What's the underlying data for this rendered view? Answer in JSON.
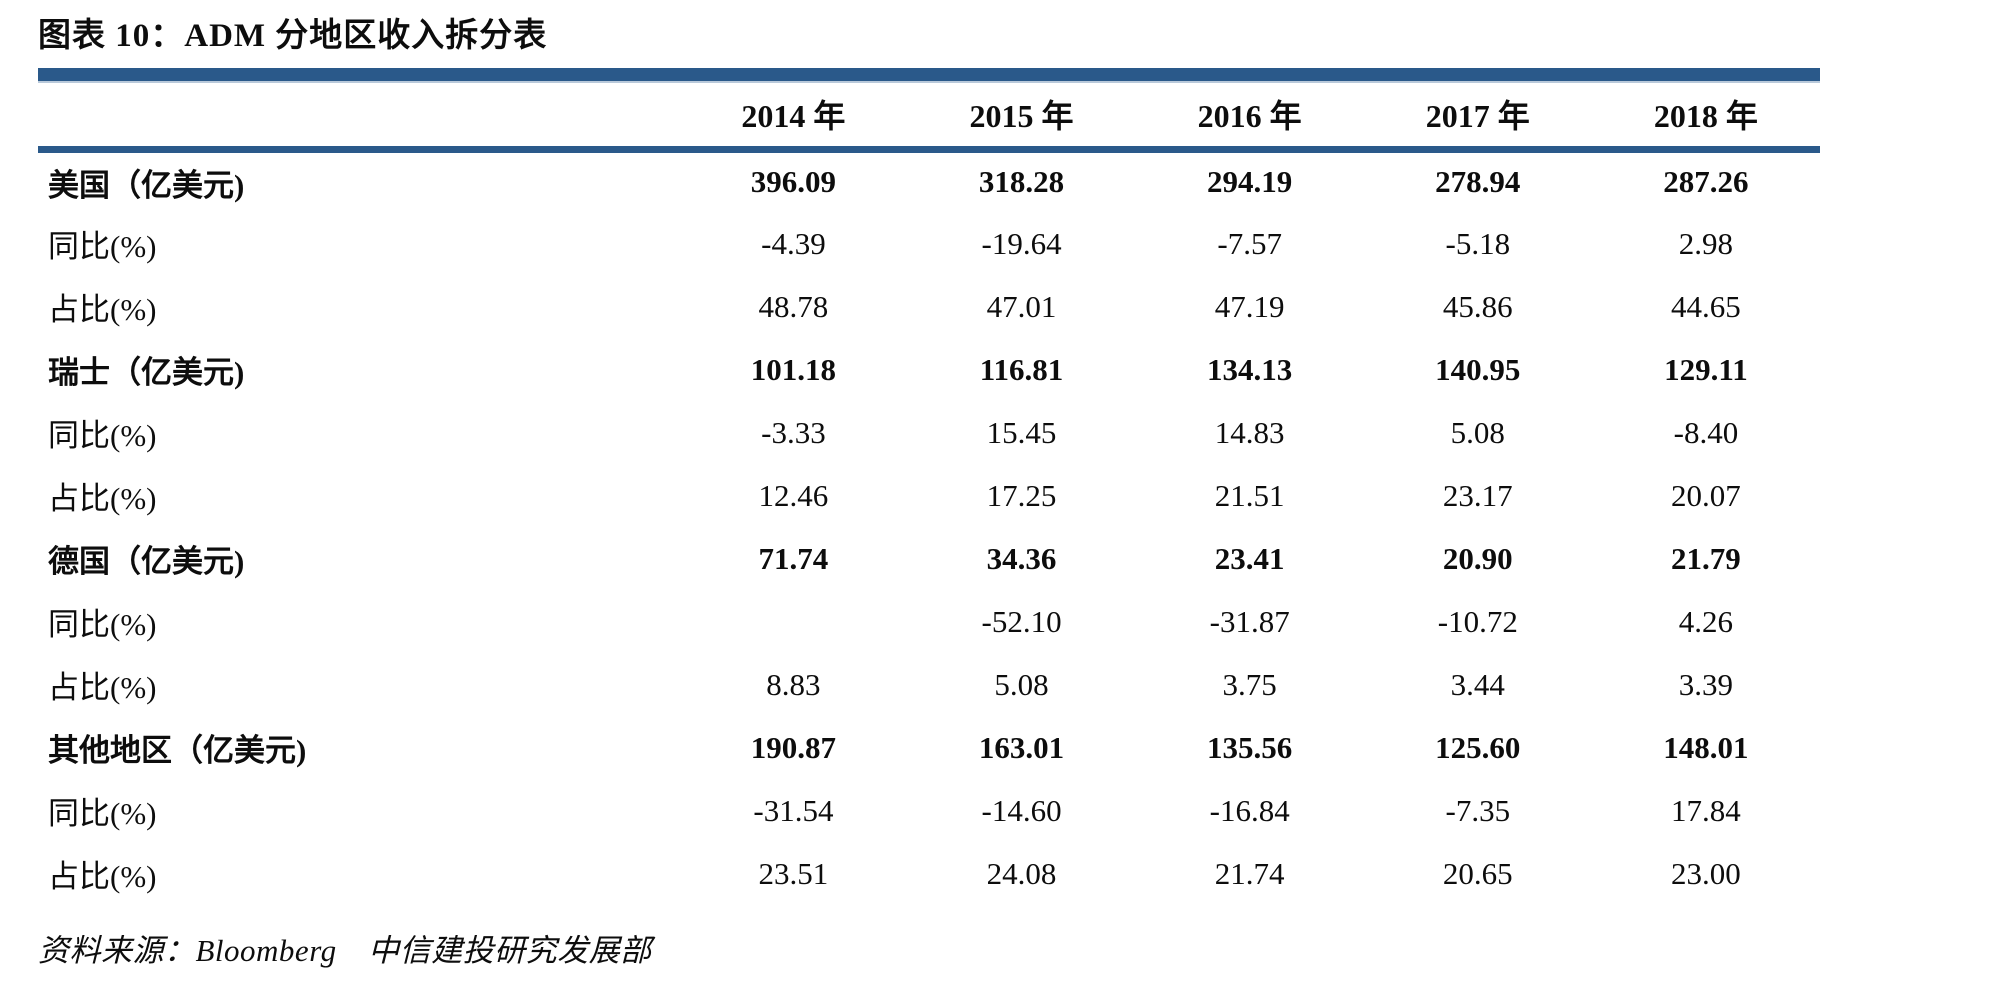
{
  "figure": {
    "title": "图表 10：ADM 分地区收入拆分表",
    "source_note": "资料来源：Bloomberg　中信建投研究发展部"
  },
  "accent_color": "#2a598a",
  "table": {
    "columns": [
      "",
      "2014 年",
      "2015 年",
      "2016 年",
      "2017 年",
      "2018 年"
    ],
    "rows": [
      {
        "label": "美国（亿美元)",
        "bold": true,
        "values": [
          "396.09",
          "318.28",
          "294.19",
          "278.94",
          "287.26"
        ]
      },
      {
        "label": "同比(%)",
        "bold": false,
        "values": [
          "-4.39",
          "-19.64",
          "-7.57",
          "-5.18",
          "2.98"
        ]
      },
      {
        "label": "占比(%)",
        "bold": false,
        "values": [
          "48.78",
          "47.01",
          "47.19",
          "45.86",
          "44.65"
        ]
      },
      {
        "label": "瑞士（亿美元)",
        "bold": true,
        "values": [
          "101.18",
          "116.81",
          "134.13",
          "140.95",
          "129.11"
        ]
      },
      {
        "label": "同比(%)",
        "bold": false,
        "values": [
          "-3.33",
          "15.45",
          "14.83",
          "5.08",
          "-8.40"
        ]
      },
      {
        "label": "占比(%)",
        "bold": false,
        "values": [
          "12.46",
          "17.25",
          "21.51",
          "23.17",
          "20.07"
        ]
      },
      {
        "label": "德国（亿美元)",
        "bold": true,
        "values": [
          "71.74",
          "34.36",
          "23.41",
          "20.90",
          "21.79"
        ]
      },
      {
        "label": "同比(%)",
        "bold": false,
        "values": [
          "",
          "-52.10",
          "-31.87",
          "-10.72",
          "4.26"
        ]
      },
      {
        "label": "占比(%)",
        "bold": false,
        "values": [
          "8.83",
          "5.08",
          "3.75",
          "3.44",
          "3.39"
        ]
      },
      {
        "label": "其他地区（亿美元)",
        "bold": true,
        "values": [
          "190.87",
          "163.01",
          "135.56",
          "125.60",
          "148.01"
        ]
      },
      {
        "label": "同比(%)",
        "bold": false,
        "values": [
          "-31.54",
          "-14.60",
          "-16.84",
          "-7.35",
          "17.84"
        ]
      },
      {
        "label": "占比(%)",
        "bold": false,
        "values": [
          "23.51",
          "24.08",
          "21.74",
          "20.65",
          "23.00"
        ]
      }
    ]
  }
}
